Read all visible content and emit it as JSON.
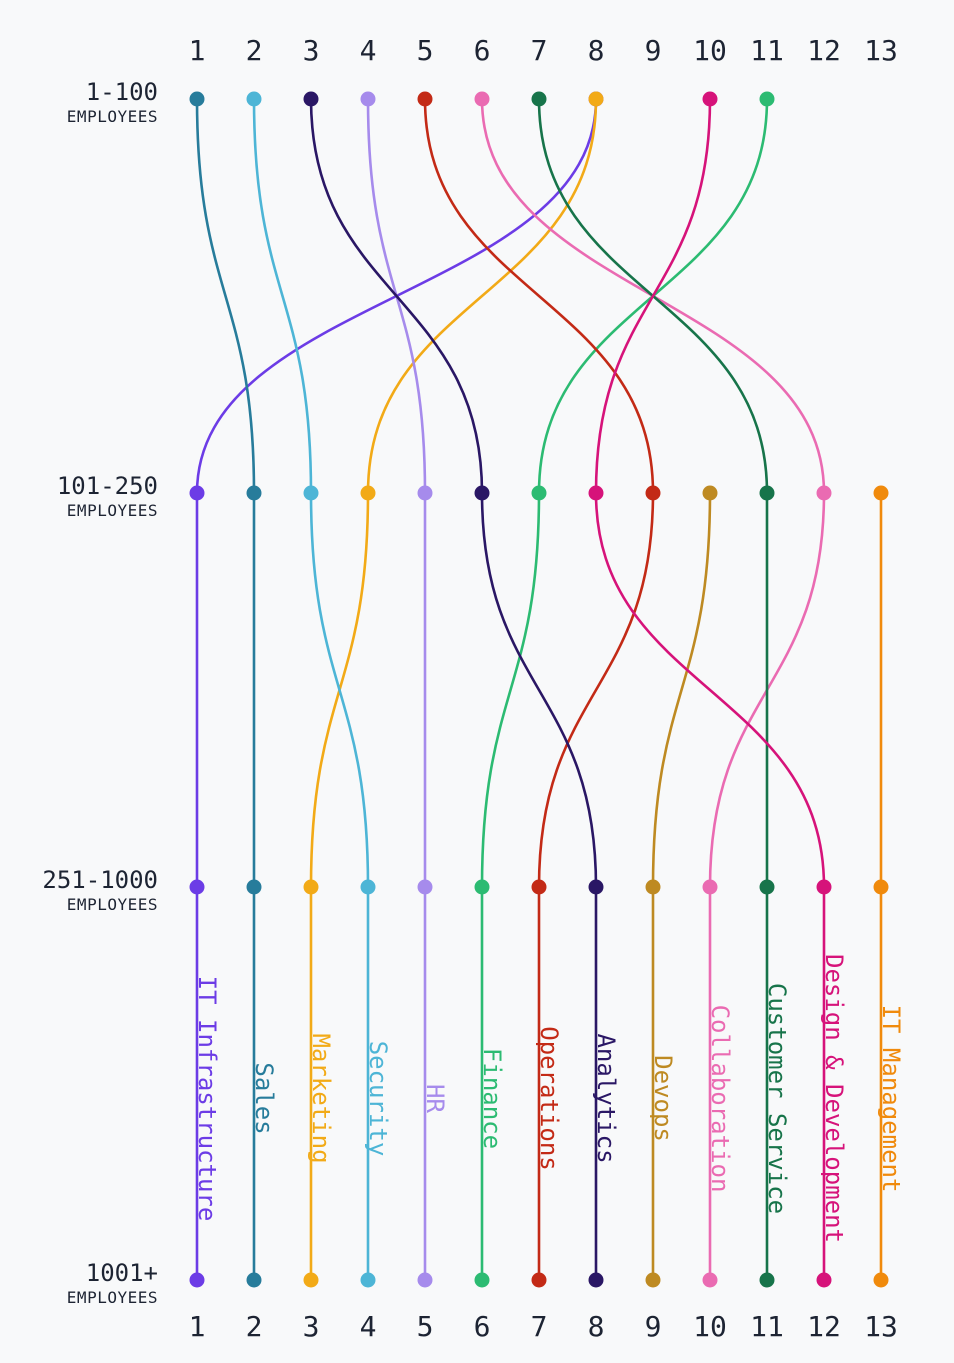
{
  "chart_data": {
    "type": "bump",
    "rank_labels": [
      "1",
      "2",
      "3",
      "4",
      "5",
      "6",
      "7",
      "8",
      "9",
      "10",
      "11",
      "12",
      "13"
    ],
    "tiers": [
      {
        "label": "1-100",
        "sublabel": "EMPLOYEES"
      },
      {
        "label": "101-250",
        "sublabel": "EMPLOYEES"
      },
      {
        "label": "251-1000",
        "sublabel": "EMPLOYEES"
      },
      {
        "label": "1001+",
        "sublabel": "EMPLOYEES"
      }
    ],
    "series": [
      {
        "name": "IT Infrastructure",
        "color": "#6c3ce6",
        "ranks": [
          8,
          1,
          1,
          1
        ]
      },
      {
        "name": "Sales",
        "color": "#277c9b",
        "ranks": [
          1,
          2,
          2,
          2
        ]
      },
      {
        "name": "Marketing",
        "color": "#f2aa17",
        "ranks": [
          8,
          4,
          3,
          3
        ]
      },
      {
        "name": "Security",
        "color": "#4db5d6",
        "ranks": [
          2,
          3,
          4,
          4
        ]
      },
      {
        "name": "HR",
        "color": "#a68bec",
        "ranks": [
          4,
          5,
          5,
          5
        ]
      },
      {
        "name": "Finance",
        "color": "#2cbb72",
        "ranks": [
          11,
          7,
          6,
          6
        ]
      },
      {
        "name": "Operations",
        "color": "#c32a16",
        "ranks": [
          5,
          9,
          7,
          7
        ]
      },
      {
        "name": "Analytics",
        "color": "#2a1765",
        "ranks": [
          3,
          6,
          8,
          8
        ]
      },
      {
        "name": "Devops",
        "color": "#be8a22",
        "ranks": [
          null,
          10,
          9,
          9
        ]
      },
      {
        "name": "Collaboration",
        "color": "#ea6bb2",
        "ranks": [
          6,
          12,
          10,
          10
        ]
      },
      {
        "name": "Customer Service",
        "color": "#17744a",
        "ranks": [
          7,
          11,
          11,
          11
        ]
      },
      {
        "name": "Design & Development",
        "color": "#d6137a",
        "ranks": [
          10,
          8,
          12,
          12
        ]
      },
      {
        "name": "IT Management",
        "color": "#f08a0c",
        "ranks": [
          null,
          13,
          13,
          13
        ]
      }
    ]
  }
}
